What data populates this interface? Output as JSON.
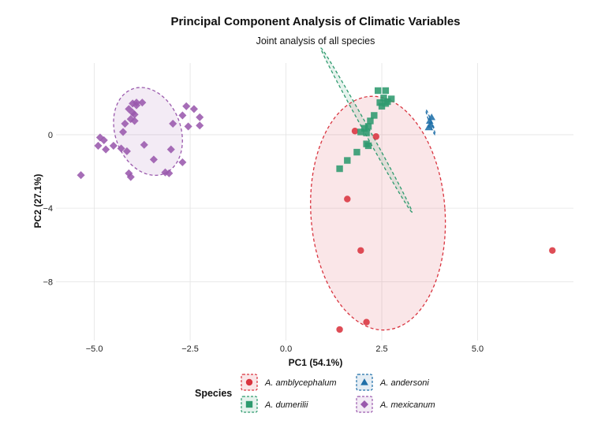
{
  "chart_data": {
    "type": "scatter",
    "title": "Principal Component Analysis of Climatic Variables",
    "subtitle": "Joint analysis of all species",
    "xlabel": "PC1 (54.1%)",
    "ylabel": "PC2 (27.1%)",
    "xlim": [
      -6.0,
      7.5
    ],
    "ylim": [
      -11.2,
      3.9
    ],
    "x_ticks": [
      -5.0,
      -2.5,
      0.0,
      2.5,
      5.0
    ],
    "x_tick_labels": [
      "-5.0",
      "-2.5",
      "0.0",
      "2.5",
      "5.0"
    ],
    "y_ticks": [
      0,
      -4,
      -8
    ],
    "y_tick_labels": [
      "0",
      "-4",
      "-8"
    ],
    "grid": true,
    "legend": {
      "title": "Species",
      "placement": "bottom",
      "columns": 2
    },
    "series": [
      {
        "name": "A. amblycephalum",
        "color": "#d9343f",
        "marker": "circle",
        "points": [
          [
            1.8,
            0.2
          ],
          [
            2.35,
            -0.1
          ],
          [
            1.6,
            -3.5
          ],
          [
            1.95,
            -6.3
          ],
          [
            1.4,
            -10.6
          ],
          [
            2.1,
            -10.2
          ],
          [
            6.95,
            -6.3
          ]
        ],
        "ellipse": {
          "cx": 2.4,
          "cy": -4.27,
          "rx": 1.75,
          "ry": 6.37,
          "angle": -4
        }
      },
      {
        "name": "A. dumerilii",
        "color": "#2e9a6e",
        "marker": "square",
        "points": [
          [
            2.4,
            2.4
          ],
          [
            2.6,
            2.4
          ],
          [
            2.55,
            2.0
          ],
          [
            2.45,
            1.75
          ],
          [
            2.6,
            1.7
          ],
          [
            2.75,
            1.95
          ],
          [
            2.65,
            1.8
          ],
          [
            2.5,
            1.55
          ],
          [
            2.3,
            1.05
          ],
          [
            2.2,
            0.75
          ],
          [
            2.15,
            0.45
          ],
          [
            2.05,
            0.35
          ],
          [
            2.1,
            0.1
          ],
          [
            1.95,
            0.15
          ],
          [
            2.1,
            -0.5
          ],
          [
            2.15,
            -0.6
          ],
          [
            1.85,
            -0.95
          ],
          [
            1.6,
            -1.4
          ],
          [
            1.4,
            -1.85
          ]
        ],
        "ellipse": {
          "cx": 2.1,
          "cy": 0.25,
          "rx": 2.45,
          "ry": 0.15,
          "angle": 61
        }
      },
      {
        "name": "A. andersoni",
        "color": "#1f6fa8",
        "marker": "triangle",
        "points": [
          [
            3.8,
            0.95
          ],
          [
            3.75,
            0.75
          ],
          [
            3.78,
            0.55
          ],
          [
            3.72,
            0.4
          ]
        ],
        "ellipse": {
          "cx": 3.77,
          "cy": 0.68,
          "rx": 0.35,
          "ry": 0.06,
          "angle": 70
        }
      },
      {
        "name": "A. mexicanum",
        "color": "#9a59ad",
        "marker": "diamond",
        "points": [
          [
            -3.9,
            1.75
          ],
          [
            -4.0,
            1.7
          ],
          [
            -3.9,
            1.6
          ],
          [
            -3.75,
            1.75
          ],
          [
            -4.1,
            1.4
          ],
          [
            -4.0,
            1.2
          ],
          [
            -3.95,
            1.1
          ],
          [
            -4.05,
            0.85
          ],
          [
            -3.95,
            0.75
          ],
          [
            -4.2,
            0.6
          ],
          [
            -4.25,
            0.15
          ],
          [
            -4.85,
            -0.15
          ],
          [
            -4.9,
            -0.6
          ],
          [
            -4.75,
            -0.3
          ],
          [
            -4.7,
            -0.8
          ],
          [
            -4.5,
            -0.6
          ],
          [
            -4.3,
            -0.75
          ],
          [
            -4.15,
            -0.9
          ],
          [
            -3.7,
            -0.55
          ],
          [
            -3.0,
            -0.8
          ],
          [
            -3.15,
            -2.05
          ],
          [
            -3.05,
            -2.1
          ],
          [
            -3.45,
            -1.35
          ],
          [
            -2.7,
            -1.5
          ],
          [
            -2.6,
            1.55
          ],
          [
            -2.4,
            1.4
          ],
          [
            -2.7,
            1.05
          ],
          [
            -2.25,
            0.95
          ],
          [
            -2.55,
            0.45
          ],
          [
            -2.25,
            0.5
          ],
          [
            -4.1,
            -2.1
          ],
          [
            -4.05,
            -2.3
          ],
          [
            -5.35,
            -2.2
          ],
          [
            -2.95,
            0.6
          ]
        ],
        "ellipse": {
          "cx": -3.6,
          "cy": 0.18,
          "rx": 1.18,
          "ry": 1.78,
          "angle": 70
        }
      }
    ]
  }
}
